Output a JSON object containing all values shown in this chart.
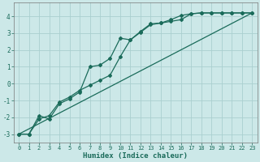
{
  "xlabel": "Humidex (Indice chaleur)",
  "bg_color": "#cce8e8",
  "grid_color": "#aacfcf",
  "line_color": "#1a6b5a",
  "xlim": [
    -0.5,
    23.5
  ],
  "ylim": [
    -3.5,
    4.8
  ],
  "xticks": [
    0,
    1,
    2,
    3,
    4,
    5,
    6,
    7,
    8,
    9,
    10,
    11,
    12,
    13,
    14,
    15,
    16,
    17,
    18,
    19,
    20,
    21,
    22,
    23
  ],
  "yticks": [
    -3,
    -2,
    -1,
    0,
    1,
    2,
    3,
    4
  ],
  "line1_x": [
    0,
    1,
    2,
    3,
    4,
    5,
    6,
    7,
    8,
    9,
    10,
    11,
    12,
    13,
    14,
    15,
    16,
    17,
    18,
    19,
    20,
    21,
    22,
    23
  ],
  "line1_y": [
    -3.0,
    -3.0,
    -1.9,
    -2.1,
    -1.2,
    -0.9,
    -0.5,
    1.0,
    1.1,
    1.5,
    2.7,
    2.6,
    3.1,
    3.55,
    3.6,
    3.7,
    3.8,
    4.15,
    4.2,
    4.2,
    4.2,
    4.2,
    4.2,
    4.2
  ],
  "line2_x": [
    0,
    1,
    2,
    3,
    4,
    5,
    6,
    7,
    8,
    9,
    10,
    11,
    12,
    13,
    14,
    15,
    16,
    17,
    18,
    19,
    20,
    21,
    22,
    23
  ],
  "line2_y": [
    -3.0,
    -3.0,
    -2.1,
    -1.9,
    -1.1,
    -0.8,
    -0.4,
    -0.1,
    0.2,
    0.5,
    1.6,
    2.6,
    3.05,
    3.5,
    3.6,
    3.8,
    4.05,
    4.15,
    4.2,
    4.2,
    4.2,
    4.2,
    4.2,
    4.2
  ],
  "line3_x": [
    0,
    23
  ],
  "line3_y": [
    -3.0,
    4.2
  ]
}
